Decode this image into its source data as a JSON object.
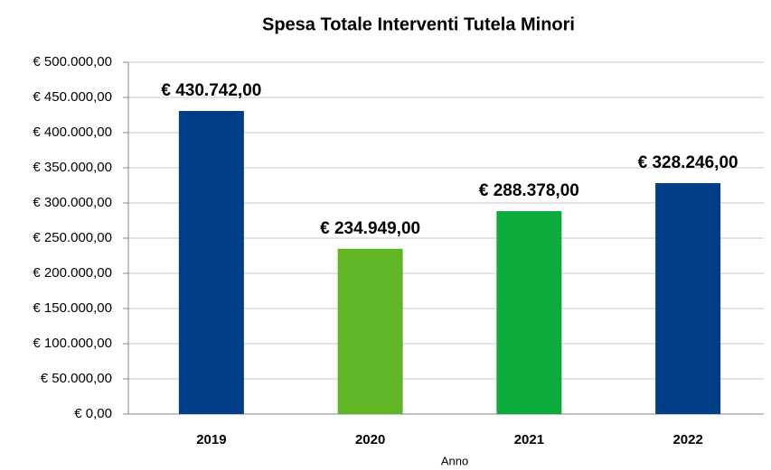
{
  "chart_data": {
    "type": "bar",
    "title": "Spesa Totale Interventi Tutela Minori",
    "x_label": "Anno",
    "categories": [
      "2019",
      "2020",
      "2021",
      "2022"
    ],
    "values": [
      430742,
      234949,
      288378,
      328246
    ],
    "value_labels": [
      "€ 430.742,00",
      "€ 234.949,00",
      "€ 288.378,00",
      "€ 328.246,00"
    ],
    "colors": [
      "#003f87",
      "#5fb523",
      "#0cac3c",
      "#003f87"
    ],
    "ylim": [
      0,
      500000
    ],
    "yticks": [
      {
        "value": 0,
        "label": "€ 0,00"
      },
      {
        "value": 50000,
        "label": "€ 50.000,00"
      },
      {
        "value": 100000,
        "label": "€ 100.000,00"
      },
      {
        "value": 150000,
        "label": "€ 150.000,00"
      },
      {
        "value": 200000,
        "label": "€ 200.000,00"
      },
      {
        "value": 250000,
        "label": "€ 250.000,00"
      },
      {
        "value": 300000,
        "label": "€ 300.000,00"
      },
      {
        "value": 350000,
        "label": "€ 350.000,00"
      },
      {
        "value": 400000,
        "label": "€ 400.000,00"
      },
      {
        "value": 450000,
        "label": "€ 450.000,00"
      },
      {
        "value": 500000,
        "label": "€ 500.000,00"
      }
    ],
    "grid": true
  }
}
